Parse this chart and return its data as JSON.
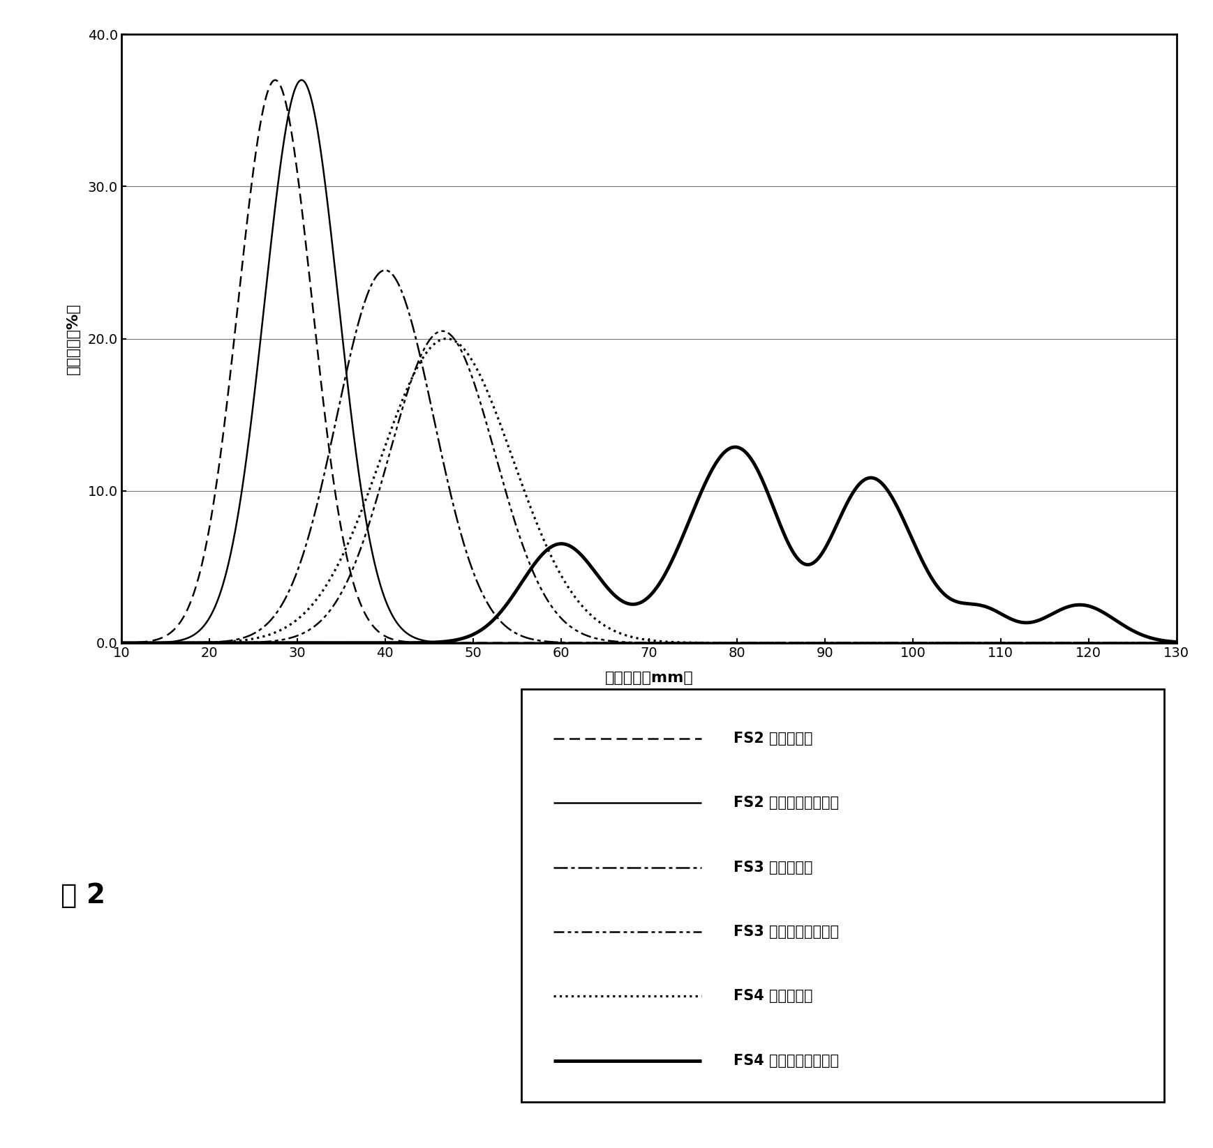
{
  "xlabel": "长度级别（mm）",
  "ylabel": "重量比例（%）",
  "xlim": [
    10,
    130
  ],
  "ylim": [
    0.0,
    40.0
  ],
  "xticks": [
    10,
    20,
    30,
    40,
    50,
    60,
    70,
    80,
    90,
    100,
    110,
    120,
    130
  ],
  "yticks": [
    0.0,
    10.0,
    20.0,
    30.0,
    40.0
  ],
  "ytick_labels": [
    "0.0",
    "10.0",
    "20.0",
    "30.0",
    "40.0"
  ],
  "figure_label": "图 2",
  "legend_entries": [
    "FS2 目前的方法",
    "FS2 根据本发明的方法",
    "FS3 目前的方法",
    "FS3 根据本发明的方法",
    "FS4 目前的方法",
    "FS4 根据本发明的方法"
  ],
  "fs2_current": {
    "mu": 27.5,
    "sigma": 4.2,
    "amp": 37.0
  },
  "fs2_new": {
    "mu": 30.5,
    "sigma": 4.2,
    "amp": 37.0
  },
  "fs3_current": {
    "mu": 40.0,
    "sigma": 5.5,
    "amp": 24.5
  },
  "fs3_new": {
    "mu": 46.5,
    "sigma": 6.0,
    "amp": 20.5
  },
  "fs4_current": {
    "mu": 47.0,
    "sigma": 7.5,
    "amp": 20.0
  },
  "fs4_new_peaks": [
    {
      "mu": 60.0,
      "sigma": 4.5,
      "amp": 6.5
    },
    {
      "mu": 80.0,
      "sigma": 5.5,
      "amp": 13.0
    },
    {
      "mu": 88.0,
      "sigma": 3.5,
      "amp": -3.5
    },
    {
      "mu": 95.0,
      "sigma": 5.0,
      "amp": 11.0
    },
    {
      "mu": 108.0,
      "sigma": 3.0,
      "amp": 2.0
    },
    {
      "mu": 119.0,
      "sigma": 4.0,
      "amp": 2.5
    }
  ]
}
